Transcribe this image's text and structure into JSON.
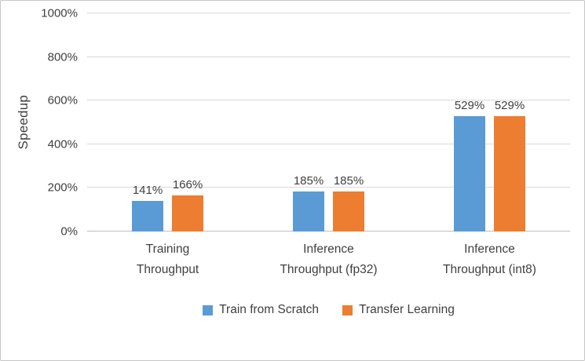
{
  "chart_data": {
    "type": "bar",
    "title": "",
    "xlabel": "",
    "ylabel": "Speedup",
    "ylim": [
      0,
      1000
    ],
    "ytick_step": 200,
    "ytick_suffix": "%",
    "grid": true,
    "legend_position": "bottom",
    "categories": [
      "Training\nThroughput",
      "Inference\nThroughput (fp32)",
      "Inference\nThroughput (int8)"
    ],
    "series": [
      {
        "name": "Train from Scratch",
        "color": "#5B9BD5",
        "values": [
          141,
          185,
          529
        ],
        "labels": [
          "141%",
          "185%",
          "529%"
        ]
      },
      {
        "name": "Transfer Learning",
        "color": "#ED7D31",
        "values": [
          166,
          185,
          529
        ],
        "labels": [
          "166%",
          "185%",
          "529%"
        ]
      }
    ]
  },
  "colors": {
    "gridline": "#D9D9D9",
    "axis_line": "#BFBFBF",
    "text": "#404040",
    "frame_border": "#C6C6C6"
  }
}
